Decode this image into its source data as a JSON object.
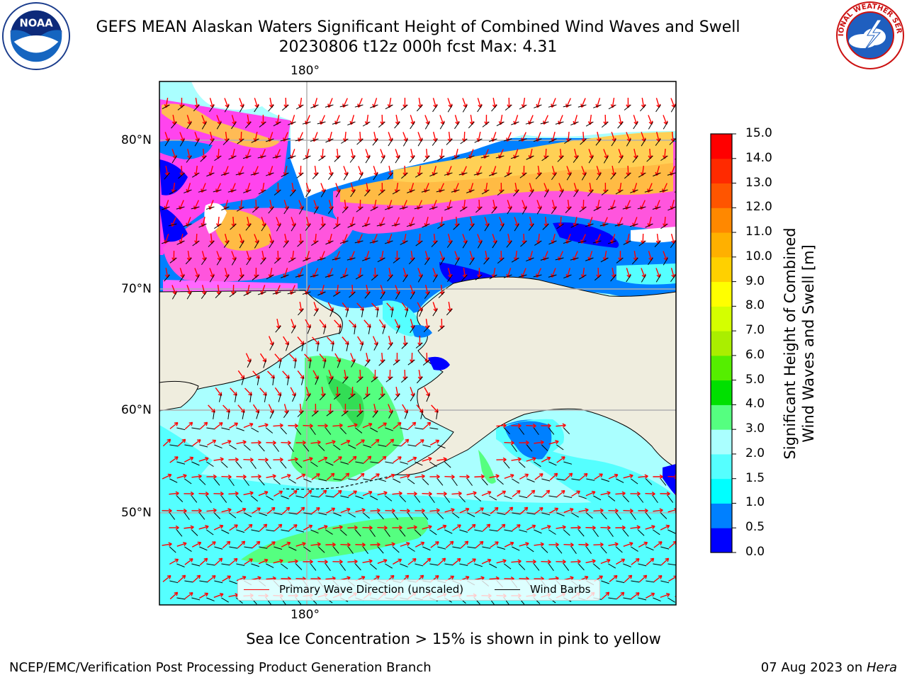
{
  "header": {
    "title_line1": "GEFS MEAN Alaskan Waters Significant Height of Combined Wind Waves and Swell",
    "title_line2": "20230806 t12z 000h fcst   Max: 4.31"
  },
  "logos": {
    "left": {
      "icon": "noaa-logo-icon",
      "text": "NOAA"
    },
    "right": {
      "icon": "national-weather-service-logo-icon",
      "text": "NATIONAL WEATHER SERVICE"
    }
  },
  "map": {
    "lon_labels": {
      "top": "180°",
      "bottom": "180°"
    },
    "lat_labels": [
      "80°N",
      "70°N",
      "60°N",
      "50°N"
    ],
    "colors": {
      "land": "#efedde",
      "ocean_low": "#0000ff",
      "gridline": "#b0b0b0"
    }
  },
  "colorbar": {
    "label_line1": "Significant Height of Combined",
    "label_line2": "Wind Waves and Swell [m]",
    "ticks": [
      "15.0",
      "14.0",
      "13.0",
      "12.0",
      "11.0",
      "10.0",
      "9.0",
      "8.0",
      "7.0",
      "6.0",
      "5.0",
      "4.0",
      "3.0",
      "2.0",
      "1.5",
      "1.0",
      "0.5",
      "0.0"
    ],
    "colors_bottom_to_top": [
      "#0000ff",
      "#0080ff",
      "#00ffff",
      "#55ffff",
      "#aaffff",
      "#55ff80",
      "#00e000",
      "#55ee00",
      "#aaee00",
      "#d4ff00",
      "#ffff00",
      "#ffd000",
      "#ffb000",
      "#ff8800",
      "#ff5500",
      "#ff2a00",
      "#ff0000"
    ]
  },
  "legend": {
    "items": [
      {
        "label": "Primary Wave Direction (unscaled)",
        "color": "#ff0000"
      },
      {
        "label": "Wind Barbs",
        "color": "#000000"
      }
    ]
  },
  "notes": {
    "sea_ice": "Sea Ice Concentration > 15% is shown in pink to yellow"
  },
  "footer": {
    "left": "NCEP/EMC/Verification Post Processing Product Generation Branch",
    "date": "07 Aug 2023 on ",
    "machine": "Hera"
  }
}
